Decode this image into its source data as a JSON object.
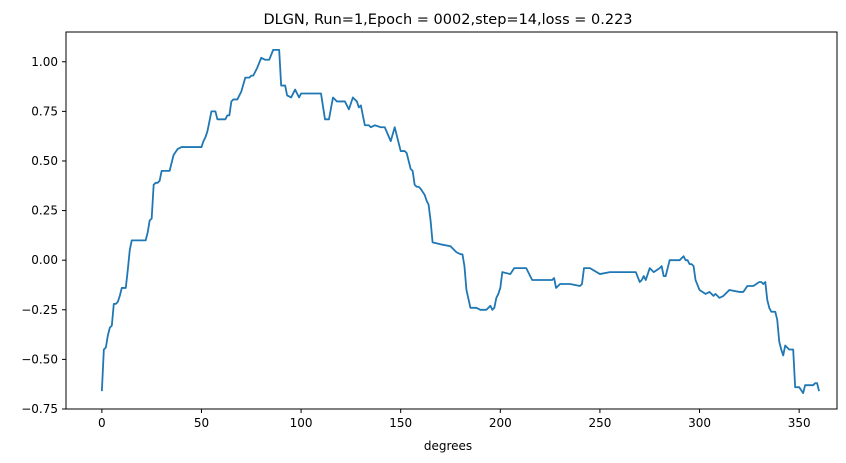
{
  "chart_data": {
    "type": "line",
    "title": "DLGN, Run=1,Epoch = 0002,step=14,loss = 0.223",
    "xlabel": "degrees",
    "ylabel": "",
    "xlim": [
      -18,
      369
    ],
    "ylim": [
      -0.75,
      1.15
    ],
    "grid": false,
    "line_color": "#1f77b4",
    "xticks": [
      0,
      50,
      100,
      150,
      200,
      250,
      300,
      350
    ],
    "xtick_labels": [
      "0",
      "50",
      "100",
      "150",
      "200",
      "250",
      "300",
      "350"
    ],
    "yticks": [
      -0.75,
      -0.5,
      -0.25,
      0.0,
      0.25,
      0.5,
      0.75,
      1.0
    ],
    "ytick_labels": [
      "−0.75",
      "−0.50",
      "−0.25",
      "0.00",
      "0.25",
      "0.50",
      "0.75",
      "1.00"
    ],
    "series": [
      {
        "x": [
          0,
          1,
          2,
          3,
          4,
          5,
          6,
          7,
          8,
          9,
          10,
          11,
          12,
          13,
          14,
          15,
          17,
          20,
          22,
          23,
          24,
          25,
          26,
          27,
          28,
          29,
          30,
          32,
          34,
          36,
          38,
          40,
          45,
          50,
          51,
          52,
          53,
          54,
          55,
          56,
          57,
          58,
          60,
          62,
          63,
          64,
          65,
          66,
          67,
          68,
          70,
          72,
          74,
          75,
          76,
          78,
          80,
          82,
          84,
          86,
          88,
          89,
          90,
          92,
          93,
          95,
          97,
          99,
          100,
          102,
          104,
          106,
          108,
          110,
          112,
          114,
          116,
          118,
          120,
          122,
          124,
          126,
          128,
          129,
          130,
          132,
          134,
          135,
          137,
          140,
          142,
          145,
          147,
          150,
          152,
          153,
          154,
          155,
          156,
          157,
          158,
          159,
          160,
          162,
          163,
          164,
          165,
          166,
          170,
          175,
          178,
          180,
          181,
          182,
          183,
          185,
          188,
          190,
          193,
          195,
          196,
          197,
          198,
          199,
          200,
          201,
          205,
          207,
          210,
          213,
          216,
          218,
          220,
          223,
          225,
          226,
          227,
          228,
          230,
          235,
          240,
          241,
          242,
          245,
          250,
          255,
          260,
          262,
          265,
          268,
          270,
          271,
          272,
          273,
          275,
          277,
          280,
          281,
          282,
          283,
          285,
          287,
          290,
          292,
          293,
          294,
          295,
          296,
          297,
          298,
          300,
          303,
          305,
          307,
          308,
          310,
          312,
          315,
          320,
          322,
          324,
          326,
          327,
          330,
          331,
          332,
          333,
          334,
          335,
          336,
          338,
          339,
          340,
          341,
          342,
          343,
          345,
          347,
          348,
          350,
          352,
          353,
          355,
          357,
          358,
          359,
          360
        ],
        "y": [
          -0.66,
          -0.45,
          -0.44,
          -0.38,
          -0.34,
          -0.33,
          -0.22,
          -0.22,
          -0.21,
          -0.18,
          -0.14,
          -0.14,
          -0.14,
          -0.05,
          0.05,
          0.1,
          0.1,
          0.1,
          0.1,
          0.14,
          0.2,
          0.21,
          0.38,
          0.39,
          0.39,
          0.4,
          0.45,
          0.45,
          0.45,
          0.53,
          0.56,
          0.57,
          0.57,
          0.57,
          0.6,
          0.62,
          0.65,
          0.7,
          0.75,
          0.75,
          0.75,
          0.71,
          0.71,
          0.71,
          0.73,
          0.73,
          0.8,
          0.81,
          0.81,
          0.81,
          0.85,
          0.92,
          0.92,
          0.93,
          0.93,
          0.97,
          1.02,
          1.01,
          1.01,
          1.06,
          1.06,
          1.06,
          0.88,
          0.88,
          0.83,
          0.82,
          0.86,
          0.82,
          0.84,
          0.84,
          0.84,
          0.84,
          0.84,
          0.84,
          0.71,
          0.71,
          0.82,
          0.8,
          0.8,
          0.8,
          0.76,
          0.82,
          0.8,
          0.77,
          0.78,
          0.68,
          0.68,
          0.67,
          0.68,
          0.67,
          0.67,
          0.6,
          0.67,
          0.55,
          0.55,
          0.54,
          0.5,
          0.46,
          0.45,
          0.38,
          0.37,
          0.37,
          0.36,
          0.33,
          0.3,
          0.28,
          0.2,
          0.09,
          0.08,
          0.07,
          0.04,
          0.03,
          0.03,
          -0.03,
          -0.15,
          -0.24,
          -0.24,
          -0.25,
          -0.25,
          -0.23,
          -0.25,
          -0.24,
          -0.19,
          -0.17,
          -0.14,
          -0.06,
          -0.07,
          -0.04,
          -0.04,
          -0.04,
          -0.1,
          -0.1,
          -0.1,
          -0.1,
          -0.1,
          -0.1,
          -0.09,
          -0.14,
          -0.12,
          -0.12,
          -0.13,
          -0.12,
          -0.04,
          -0.04,
          -0.07,
          -0.06,
          -0.06,
          -0.06,
          -0.06,
          -0.06,
          -0.11,
          -0.1,
          -0.08,
          -0.1,
          -0.04,
          -0.06,
          -0.04,
          -0.03,
          -0.08,
          -0.08,
          0.0,
          0.0,
          0.0,
          0.02,
          0.0,
          0.0,
          -0.02,
          -0.02,
          -0.03,
          -0.1,
          -0.15,
          -0.17,
          -0.16,
          -0.18,
          -0.17,
          -0.19,
          -0.18,
          -0.15,
          -0.16,
          -0.16,
          -0.13,
          -0.13,
          -0.13,
          -0.11,
          -0.11,
          -0.12,
          -0.11,
          -0.2,
          -0.24,
          -0.26,
          -0.26,
          -0.3,
          -0.41,
          -0.45,
          -0.48,
          -0.43,
          -0.45,
          -0.45,
          -0.64,
          -0.64,
          -0.67,
          -0.63,
          -0.63,
          -0.63,
          -0.62,
          -0.62,
          -0.66
        ]
      }
    ]
  }
}
